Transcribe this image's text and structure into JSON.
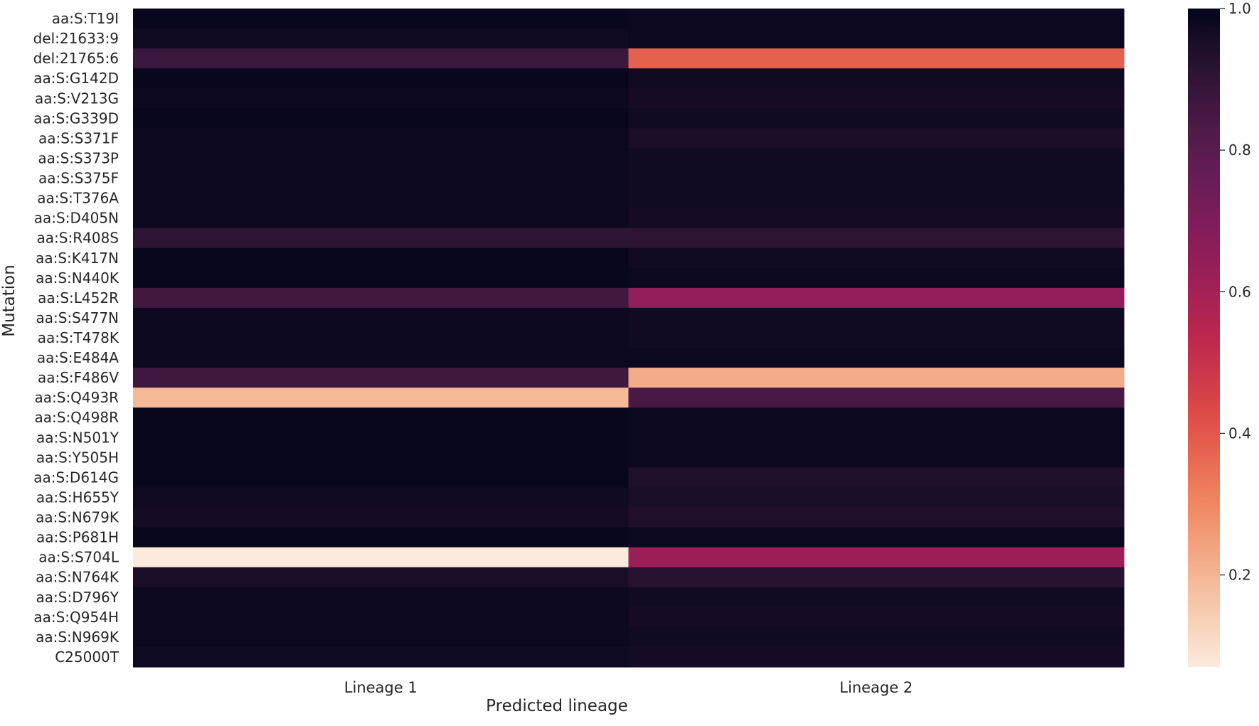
{
  "chart_data": {
    "type": "heatmap",
    "title": "",
    "xlabel": "Predicted lineage",
    "ylabel": "Mutation",
    "columns": [
      "Lineage 1",
      "Lineage 2"
    ],
    "rows": [
      "aa:S:T19I",
      "del:21633:9",
      "del:21765:6",
      "aa:S:G142D",
      "aa:S:V213G",
      "aa:S:G339D",
      "aa:S:S371F",
      "aa:S:S373P",
      "aa:S:S375F",
      "aa:S:T376A",
      "aa:S:D405N",
      "aa:S:R408S",
      "aa:S:K417N",
      "aa:S:N440K",
      "aa:S:L452R",
      "aa:S:S477N",
      "aa:S:T478K",
      "aa:S:E484A",
      "aa:S:F486V",
      "aa:S:Q493R",
      "aa:S:Q498R",
      "aa:S:N501Y",
      "aa:S:Y505H",
      "aa:S:D614G",
      "aa:S:H655Y",
      "aa:S:N679K",
      "aa:S:P681H",
      "aa:S:S704L",
      "aa:S:N764K",
      "aa:S:D796Y",
      "aa:S:Q954H",
      "aa:S:N969K",
      "C25000T"
    ],
    "values": [
      [
        0.99,
        0.98
      ],
      [
        0.97,
        0.98
      ],
      [
        0.88,
        0.38
      ],
      [
        0.99,
        0.97
      ],
      [
        0.98,
        0.96
      ],
      [
        0.99,
        0.97
      ],
      [
        0.98,
        0.95
      ],
      [
        0.98,
        0.97
      ],
      [
        0.98,
        0.97
      ],
      [
        0.98,
        0.97
      ],
      [
        0.98,
        0.96
      ],
      [
        0.91,
        0.91
      ],
      [
        0.99,
        0.97
      ],
      [
        0.99,
        0.98
      ],
      [
        0.86,
        0.65
      ],
      [
        0.98,
        0.97
      ],
      [
        0.98,
        0.97
      ],
      [
        0.98,
        0.98
      ],
      [
        0.87,
        0.22
      ],
      [
        0.19,
        0.84
      ],
      [
        0.99,
        0.98
      ],
      [
        0.99,
        0.98
      ],
      [
        0.99,
        0.98
      ],
      [
        0.99,
        0.94
      ],
      [
        0.97,
        0.95
      ],
      [
        0.96,
        0.94
      ],
      [
        0.99,
        0.98
      ],
      [
        0.07,
        0.62
      ],
      [
        0.95,
        0.92
      ],
      [
        0.98,
        0.97
      ],
      [
        0.98,
        0.96
      ],
      [
        0.98,
        0.97
      ],
      [
        0.97,
        0.96
      ]
    ],
    "colorbar": {
      "ticks": [
        0.2,
        0.4,
        0.6,
        0.8,
        1.0
      ],
      "tick_labels": [
        "0.2",
        "0.4",
        "0.6",
        "0.8",
        "1.0"
      ],
      "vmin": 0.07,
      "vmax": 1.0,
      "colormap": "rocket_r"
    },
    "grid": false
  }
}
